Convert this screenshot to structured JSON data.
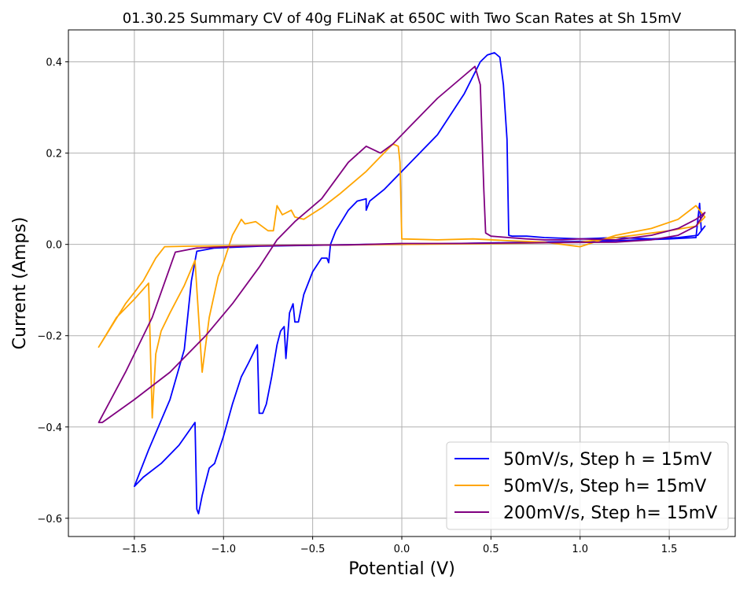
{
  "chart_data": {
    "type": "line",
    "title": "01.30.25 Summary CV of 40g FLiNaK at 650C with Two Scan Rates at Sh 15mV",
    "xlabel": "Potential (V)",
    "ylabel": "Current (Amps)",
    "xlim": [
      -1.87,
      1.87
    ],
    "ylim": [
      -0.64,
      0.47
    ],
    "xticks": [
      -1.5,
      -1.0,
      -0.5,
      0.0,
      0.5,
      1.0,
      1.5
    ],
    "xtick_labels": [
      "−1.5",
      "−1.0",
      "−0.5",
      "0.0",
      "0.5",
      "1.0",
      "1.5"
    ],
    "yticks": [
      -0.6,
      -0.4,
      -0.2,
      0.0,
      0.2,
      0.4
    ],
    "ytick_labels": [
      "−0.6",
      "−0.4",
      "−0.2",
      "0.0",
      "0.2",
      "0.4"
    ],
    "grid": true,
    "legend_position": "bottom-right",
    "series": [
      {
        "name": "50mV/s, Step h = 15mV",
        "color": "#0000ff",
        "points": [
          [
            0.0,
            0.0
          ],
          [
            0.3,
            0.002
          ],
          [
            0.6,
            0.004
          ],
          [
            0.9,
            0.006
          ],
          [
            1.2,
            0.008
          ],
          [
            1.5,
            0.012
          ],
          [
            1.65,
            0.015
          ],
          [
            1.67,
            0.09
          ],
          [
            1.68,
            0.03
          ],
          [
            1.7,
            0.04
          ],
          [
            1.66,
            0.02
          ],
          [
            1.55,
            0.015
          ],
          [
            1.4,
            0.012
          ],
          [
            1.2,
            0.015
          ],
          [
            1.0,
            0.012
          ],
          [
            0.8,
            0.015
          ],
          [
            0.7,
            0.018
          ],
          [
            0.62,
            0.018
          ],
          [
            0.6,
            0.02
          ],
          [
            0.59,
            0.23
          ],
          [
            0.57,
            0.35
          ],
          [
            0.55,
            0.41
          ],
          [
            0.52,
            0.42
          ],
          [
            0.48,
            0.415
          ],
          [
            0.44,
            0.4
          ],
          [
            0.35,
            0.33
          ],
          [
            0.2,
            0.24
          ],
          [
            0.0,
            0.16
          ],
          [
            -0.1,
            0.12
          ],
          [
            -0.18,
            0.095
          ],
          [
            -0.2,
            0.075
          ],
          [
            -0.2,
            0.1
          ],
          [
            -0.25,
            0.095
          ],
          [
            -0.3,
            0.075
          ],
          [
            -0.37,
            0.03
          ],
          [
            -0.4,
            0.0
          ],
          [
            -0.41,
            -0.04
          ],
          [
            -0.42,
            -0.03
          ],
          [
            -0.45,
            -0.03
          ],
          [
            -0.5,
            -0.06
          ],
          [
            -0.55,
            -0.11
          ],
          [
            -0.58,
            -0.17
          ],
          [
            -0.6,
            -0.17
          ],
          [
            -0.61,
            -0.13
          ],
          [
            -0.63,
            -0.15
          ],
          [
            -0.65,
            -0.25
          ],
          [
            -0.66,
            -0.18
          ],
          [
            -0.68,
            -0.19
          ],
          [
            -0.7,
            -0.22
          ],
          [
            -0.73,
            -0.29
          ],
          [
            -0.76,
            -0.35
          ],
          [
            -0.78,
            -0.37
          ],
          [
            -0.8,
            -0.37
          ],
          [
            -0.81,
            -0.22
          ],
          [
            -0.86,
            -0.26
          ],
          [
            -0.9,
            -0.29
          ],
          [
            -0.95,
            -0.35
          ],
          [
            -1.0,
            -0.42
          ],
          [
            -1.05,
            -0.48
          ],
          [
            -1.08,
            -0.49
          ],
          [
            -1.1,
            -0.52
          ],
          [
            -1.12,
            -0.55
          ],
          [
            -1.14,
            -0.59
          ],
          [
            -1.15,
            -0.58
          ],
          [
            -1.16,
            -0.39
          ],
          [
            -1.25,
            -0.44
          ],
          [
            -1.35,
            -0.48
          ],
          [
            -1.45,
            -0.51
          ],
          [
            -1.5,
            -0.53
          ],
          [
            -1.42,
            -0.45
          ],
          [
            -1.3,
            -0.34
          ],
          [
            -1.22,
            -0.23
          ],
          [
            -1.18,
            -0.08
          ],
          [
            -1.15,
            -0.015
          ],
          [
            -1.05,
            -0.008
          ],
          [
            -0.8,
            -0.004
          ],
          [
            -0.5,
            -0.002
          ],
          [
            -0.2,
            0.0
          ],
          [
            0.0,
            0.0
          ]
        ]
      },
      {
        "name": "50mV/s, Step h= 15mV",
        "color": "#ffa500",
        "points": [
          [
            0.0,
            0.0
          ],
          [
            -0.3,
            -0.001
          ],
          [
            -0.6,
            -0.002
          ],
          [
            -0.9,
            -0.003
          ],
          [
            -1.2,
            -0.004
          ],
          [
            -1.33,
            -0.005
          ],
          [
            -1.38,
            -0.03
          ],
          [
            -1.45,
            -0.08
          ],
          [
            -1.55,
            -0.13
          ],
          [
            -1.7,
            -0.225
          ],
          [
            -1.6,
            -0.16
          ],
          [
            -1.5,
            -0.12
          ],
          [
            -1.42,
            -0.085
          ],
          [
            -1.4,
            -0.38
          ],
          [
            -1.38,
            -0.24
          ],
          [
            -1.35,
            -0.19
          ],
          [
            -1.3,
            -0.15
          ],
          [
            -1.22,
            -0.09
          ],
          [
            -1.16,
            -0.035
          ],
          [
            -1.12,
            -0.28
          ],
          [
            -1.08,
            -0.16
          ],
          [
            -1.03,
            -0.07
          ],
          [
            -1.0,
            -0.04
          ],
          [
            -0.95,
            0.02
          ],
          [
            -0.9,
            0.055
          ],
          [
            -0.88,
            0.045
          ],
          [
            -0.82,
            0.05
          ],
          [
            -0.75,
            0.03
          ],
          [
            -0.72,
            0.03
          ],
          [
            -0.7,
            0.085
          ],
          [
            -0.67,
            0.065
          ],
          [
            -0.62,
            0.075
          ],
          [
            -0.6,
            0.06
          ],
          [
            -0.55,
            0.055
          ],
          [
            -0.45,
            0.08
          ],
          [
            -0.35,
            0.11
          ],
          [
            -0.2,
            0.16
          ],
          [
            -0.1,
            0.2
          ],
          [
            -0.05,
            0.22
          ],
          [
            -0.02,
            0.215
          ],
          [
            -0.01,
            0.18
          ],
          [
            0.0,
            0.012
          ],
          [
            0.2,
            0.01
          ],
          [
            0.4,
            0.012
          ],
          [
            0.6,
            0.008
          ],
          [
            0.8,
            0.005
          ],
          [
            1.0,
            -0.005
          ],
          [
            1.2,
            0.02
          ],
          [
            1.4,
            0.035
          ],
          [
            1.55,
            0.055
          ],
          [
            1.65,
            0.085
          ],
          [
            1.7,
            0.06
          ],
          [
            1.65,
            0.04
          ],
          [
            1.5,
            0.03
          ],
          [
            1.3,
            0.02
          ],
          [
            1.0,
            0.005
          ],
          [
            0.6,
            0.002
          ],
          [
            0.3,
            0.001
          ],
          [
            0.0,
            0.0
          ]
        ]
      },
      {
        "name": "200mV/s, Step h= 15mV",
        "color": "#800080",
        "points": [
          [
            0.0,
            0.002
          ],
          [
            0.3,
            0.002
          ],
          [
            0.6,
            0.003
          ],
          [
            0.9,
            0.004
          ],
          [
            1.2,
            0.005
          ],
          [
            1.4,
            0.01
          ],
          [
            1.55,
            0.02
          ],
          [
            1.65,
            0.04
          ],
          [
            1.7,
            0.07
          ],
          [
            1.65,
            0.055
          ],
          [
            1.55,
            0.035
          ],
          [
            1.4,
            0.02
          ],
          [
            1.2,
            0.01
          ],
          [
            1.0,
            0.012
          ],
          [
            0.9,
            0.01
          ],
          [
            0.8,
            0.01
          ],
          [
            0.7,
            0.012
          ],
          [
            0.6,
            0.015
          ],
          [
            0.5,
            0.018
          ],
          [
            0.47,
            0.025
          ],
          [
            0.46,
            0.12
          ],
          [
            0.44,
            0.35
          ],
          [
            0.41,
            0.39
          ],
          [
            0.35,
            0.37
          ],
          [
            0.2,
            0.32
          ],
          [
            0.05,
            0.26
          ],
          [
            -0.05,
            0.22
          ],
          [
            -0.12,
            0.2
          ],
          [
            -0.2,
            0.215
          ],
          [
            -0.3,
            0.18
          ],
          [
            -0.45,
            0.1
          ],
          [
            -0.6,
            0.05
          ],
          [
            -0.7,
            0.01
          ],
          [
            -0.8,
            -0.05
          ],
          [
            -0.95,
            -0.13
          ],
          [
            -1.1,
            -0.2
          ],
          [
            -1.3,
            -0.28
          ],
          [
            -1.5,
            -0.34
          ],
          [
            -1.68,
            -0.39
          ],
          [
            -1.7,
            -0.39
          ],
          [
            -1.55,
            -0.28
          ],
          [
            -1.4,
            -0.16
          ],
          [
            -1.3,
            -0.05
          ],
          [
            -1.27,
            -0.017
          ],
          [
            -1.15,
            -0.008
          ],
          [
            -0.9,
            -0.004
          ],
          [
            -0.6,
            -0.002
          ],
          [
            -0.3,
            -0.001
          ],
          [
            0.0,
            0.002
          ]
        ]
      }
    ]
  }
}
